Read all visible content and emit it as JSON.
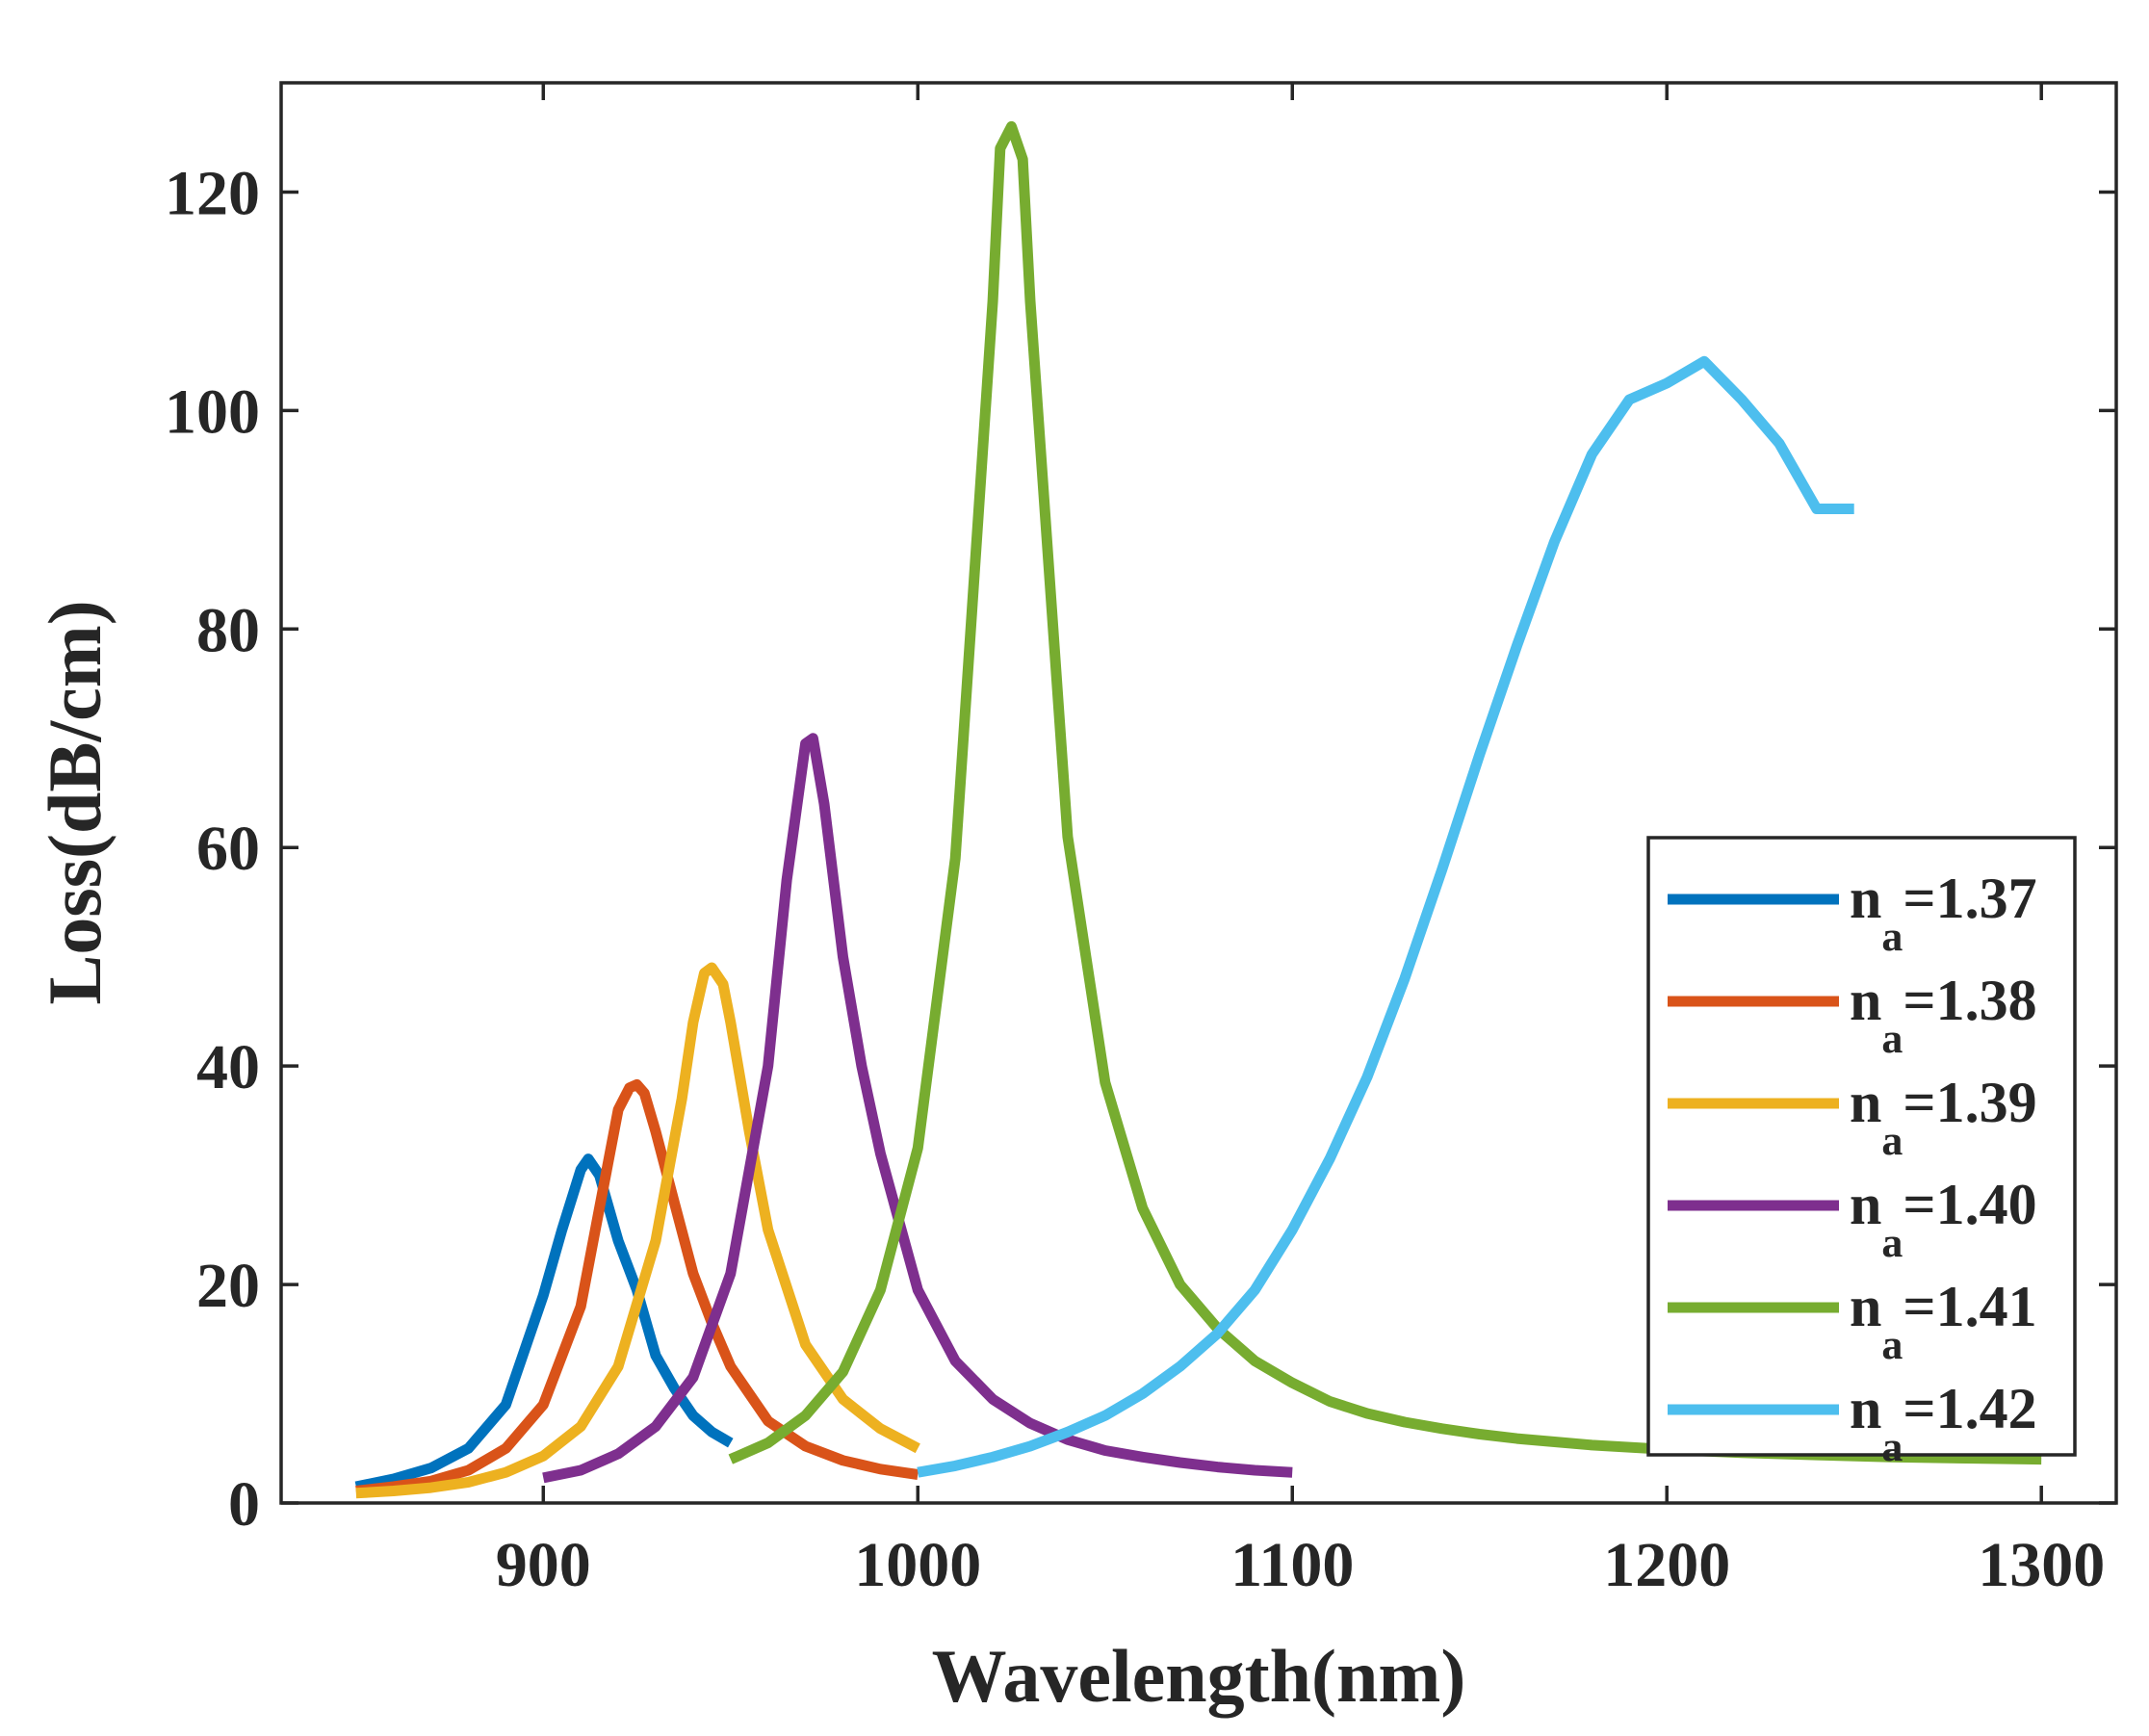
{
  "chart_data": {
    "type": "line",
    "title": "",
    "xlabel": "Wavelength(nm)",
    "ylabel": "Loss(dB/cm)",
    "xlim": [
      830,
      1320
    ],
    "ylim": [
      0,
      130
    ],
    "xticks": [
      900,
      1000,
      1100,
      1200,
      1300
    ],
    "yticks": [
      0,
      20,
      40,
      60,
      80,
      100,
      120
    ],
    "xtick_labels": [
      "900",
      "1000",
      "1100",
      "1200",
      "1300"
    ],
    "ytick_labels": [
      "0",
      "20",
      "40",
      "60",
      "80",
      "100",
      "120"
    ],
    "grid": false,
    "legend_position": "bottom-right",
    "series": [
      {
        "name": "n_a=1.37",
        "label_main": "n",
        "label_sub": "a",
        "label_value": "=1.37",
        "color": "#0072BD",
        "x": [
          850,
          860,
          870,
          880,
          890,
          900,
          905,
          910,
          912,
          915,
          920,
          925,
          930,
          935,
          940,
          945,
          950
        ],
        "y": [
          1.5,
          2.2,
          3.2,
          5,
          9,
          19,
          25,
          30.5,
          31.5,
          30,
          24,
          19.5,
          13.5,
          10.5,
          8,
          6.5,
          5.5
        ]
      },
      {
        "name": "n_a=1.38",
        "label_main": "n",
        "label_sub": "a",
        "label_value": "=1.38",
        "color": "#D95319",
        "x": [
          850,
          860,
          870,
          880,
          890,
          900,
          910,
          915,
          920,
          923,
          925,
          927,
          930,
          935,
          940,
          945,
          950,
          960,
          970,
          980,
          990,
          1000
        ],
        "y": [
          1.1,
          1.5,
          2,
          3,
          5,
          9,
          18,
          27,
          36,
          38,
          38.3,
          37.5,
          34,
          27.5,
          21,
          16.5,
          12.5,
          7.5,
          5.2,
          3.9,
          3.1,
          2.6
        ]
      },
      {
        "name": "n_a=1.39",
        "label_main": "n",
        "label_sub": "a",
        "label_value": "=1.39",
        "color": "#EDB120",
        "x": [
          850,
          860,
          870,
          880,
          890,
          900,
          910,
          920,
          930,
          937,
          940,
          943,
          945,
          948,
          950,
          955,
          960,
          970,
          980,
          990,
          1000
        ],
        "y": [
          0.9,
          1.1,
          1.4,
          1.9,
          2.8,
          4.3,
          7,
          12.5,
          24,
          37,
          44,
          48.5,
          49,
          47.5,
          44,
          34,
          25,
          14.5,
          9.5,
          6.8,
          5
        ]
      },
      {
        "name": "n_a=1.40",
        "label_main": "n",
        "label_sub": "a",
        "label_value": "=1.40",
        "color": "#7E2F8E",
        "x": [
          900,
          910,
          920,
          930,
          940,
          950,
          960,
          965,
          970,
          972,
          975,
          980,
          985,
          990,
          1000,
          1010,
          1020,
          1030,
          1040,
          1050,
          1060,
          1070,
          1080,
          1090,
          1100
        ],
        "y": [
          2.3,
          3,
          4.5,
          7,
          11.5,
          21,
          40,
          57,
          69.5,
          70,
          64,
          50,
          40,
          32,
          19.5,
          13,
          9.5,
          7.3,
          5.8,
          4.8,
          4.2,
          3.7,
          3.3,
          3,
          2.8
        ]
      },
      {
        "name": "n_a=1.41",
        "label_main": "n",
        "label_sub": "a",
        "label_value": "=1.41",
        "color": "#77AC30",
        "x": [
          950,
          960,
          970,
          980,
          990,
          1000,
          1010,
          1020,
          1022,
          1025,
          1028,
          1030,
          1040,
          1050,
          1060,
          1070,
          1080,
          1090,
          1100,
          1110,
          1120,
          1130,
          1140,
          1150,
          1160,
          1170,
          1180,
          1190,
          1200,
          1220,
          1240,
          1260,
          1280,
          1300
        ],
        "y": [
          4,
          5.5,
          8,
          12,
          19.5,
          32.5,
          59,
          110,
          124,
          126,
          123,
          110,
          61,
          38.5,
          27,
          20,
          16,
          13,
          11,
          9.3,
          8.2,
          7.4,
          6.8,
          6.3,
          5.9,
          5.6,
          5.3,
          5.1,
          4.9,
          4.6,
          4.4,
          4.2,
          4.1,
          4
        ]
      },
      {
        "name": "n_a=1.42",
        "label_main": "n",
        "label_sub": "a",
        "label_value": "=1.42",
        "color": "#4DBEEE",
        "x": [
          1000,
          1010,
          1020,
          1030,
          1040,
          1050,
          1060,
          1070,
          1080,
          1090,
          1100,
          1110,
          1120,
          1130,
          1140,
          1150,
          1160,
          1170,
          1180,
          1190,
          1200,
          1210,
          1220,
          1230,
          1240,
          1250
        ],
        "y": [
          2.8,
          3.4,
          4.2,
          5.2,
          6.5,
          8,
          10,
          12.5,
          15.5,
          19.5,
          25,
          31.5,
          39,
          48,
          58,
          68.5,
          78.5,
          88,
          96,
          101,
          102.5,
          104.5,
          101,
          97,
          91,
          91
        ]
      }
    ]
  }
}
